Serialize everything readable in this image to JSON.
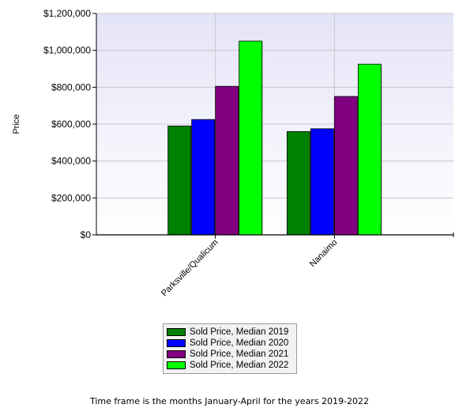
{
  "chart_data": {
    "type": "bar",
    "categories": [
      "Parksville/Qualicum",
      "Nanaimo"
    ],
    "series": [
      {
        "name": "Sold Price, Median 2019",
        "color": "#008000",
        "values": [
          590000,
          560000
        ]
      },
      {
        "name": "Sold Price, Median 2020",
        "color": "#0000ff",
        "values": [
          625000,
          575000
        ]
      },
      {
        "name": "Sold Price, Median 2021",
        "color": "#800080",
        "values": [
          805000,
          750000
        ]
      },
      {
        "name": "Sold Price, Median 2022",
        "color": "#00ff00",
        "values": [
          1050000,
          925000
        ]
      }
    ],
    "ylabel": "Price",
    "ylim": [
      0,
      1200000
    ],
    "yticks": [
      0,
      200000,
      400000,
      600000,
      800000,
      1000000,
      1200000
    ],
    "ytick_labels": [
      "$0",
      "$200,000",
      "$400,000",
      "$600,000",
      "$800,000",
      "$1,000,000",
      "$1,200,000"
    ],
    "grid": true,
    "legend_position": "bottom-center",
    "footnote": "Time frame is the months January-April for the years 2019-2022"
  }
}
